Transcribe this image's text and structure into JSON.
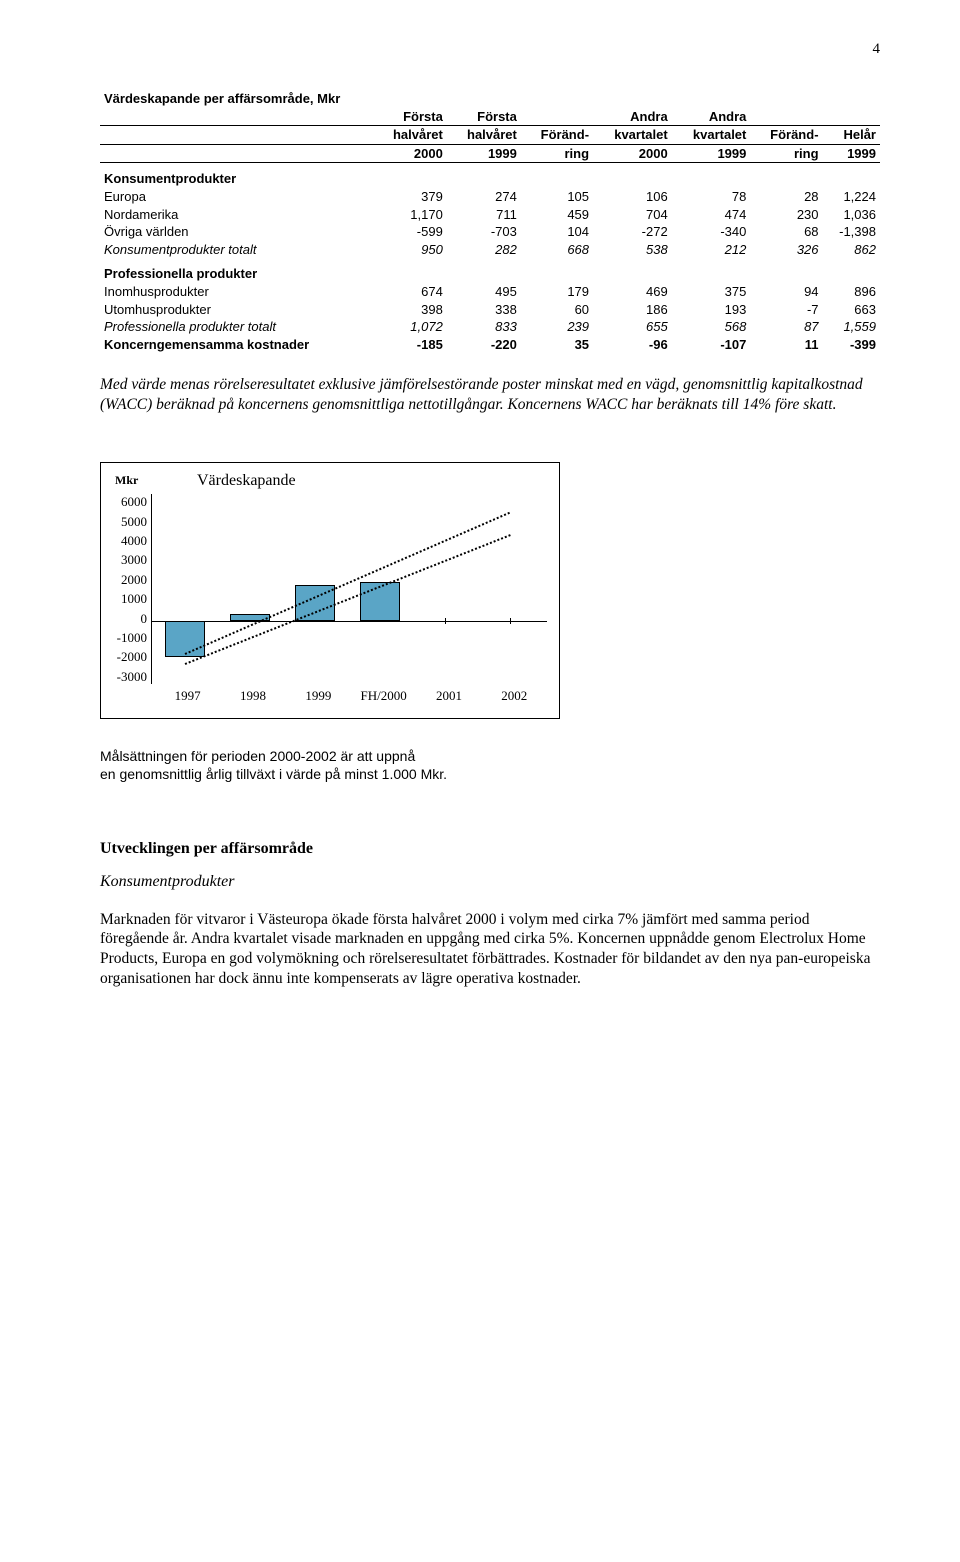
{
  "page_number": "4",
  "table": {
    "title": "Värdeskapande per affärsområde, Mkr",
    "columns": [
      {
        "line1": "",
        "line2": "",
        "line3": ""
      },
      {
        "line1": "Första",
        "line2": "halvåret",
        "line3": "2000"
      },
      {
        "line1": "Första",
        "line2": "halvåret",
        "line3": "1999"
      },
      {
        "line1": "",
        "line2": "Föränd-",
        "line3": "ring"
      },
      {
        "line1": "Andra",
        "line2": "kvartalet",
        "line3": "2000"
      },
      {
        "line1": "Andra",
        "line2": "kvartalet",
        "line3": "1999"
      },
      {
        "line1": "",
        "line2": "Föränd-",
        "line3": "ring"
      },
      {
        "line1": "",
        "line2": "Helår",
        "line3": "1999"
      }
    ],
    "section1": {
      "head": "Konsumentprodukter",
      "rows": [
        {
          "label": "Europa",
          "v": [
            "379",
            "274",
            "105",
            "106",
            "78",
            "28",
            "1,224"
          ]
        },
        {
          "label": "Nordamerika",
          "v": [
            "1,170",
            "711",
            "459",
            "704",
            "474",
            "230",
            "1,036"
          ]
        },
        {
          "label": "Övriga världen",
          "v": [
            "-599",
            "-703",
            "104",
            "-272",
            "-340",
            "68",
            "-1,398"
          ]
        }
      ],
      "total": {
        "label": "Konsumentprodukter totalt",
        "v": [
          "950",
          "282",
          "668",
          "538",
          "212",
          "326",
          "862"
        ]
      }
    },
    "section2": {
      "head": "Professionella produkter",
      "rows": [
        {
          "label": "Inomhusprodukter",
          "v": [
            "674",
            "495",
            "179",
            "469",
            "375",
            "94",
            "896"
          ]
        },
        {
          "label": "Utomhusprodukter",
          "v": [
            "398",
            "338",
            "60",
            "186",
            "193",
            "-7",
            "663"
          ]
        }
      ],
      "total": {
        "label": "Professionella produkter totalt",
        "v": [
          "1,072",
          "833",
          "239",
          "655",
          "568",
          "87",
          "1,559"
        ]
      }
    },
    "footer": {
      "label": "Koncerngemensamma kostnader",
      "v": [
        "-185",
        "-220",
        "35",
        "-96",
        "-107",
        "11",
        "-399"
      ]
    }
  },
  "paragraph1": "Med värde menas rörelseresultatet exklusive jämförelsestörande poster minskat med en vägd, genomsnittlig kapitalkostnad (WACC) beräknad på koncernens genomsnittliga nettotillgångar. Koncernens WACC har beräknats till 14% före skatt.",
  "chart": {
    "type": "bar",
    "title": "Värdeskapande",
    "y_label": "Mkr",
    "y_min": -3000,
    "y_max": 6000,
    "y_ticks": [
      "6000",
      "5000",
      "4000",
      "3000",
      "2000",
      "1000",
      "0",
      "-1000",
      "-2000",
      "-3000"
    ],
    "categories": [
      "1997",
      "1998",
      "1999",
      "FH/2000",
      "2001",
      "2002"
    ],
    "values": [
      -1700,
      350,
      1700,
      1850,
      null,
      null
    ],
    "bar_color": "#5aa5c6",
    "bar_border": "#000000",
    "background": "#ffffff",
    "trend_lower_start_y": -2000,
    "trend_lower_end_y": 4100,
    "trend_upper_start_y": -1500,
    "trend_upper_end_y": 5200
  },
  "caption_line1": "Målsättningen för perioden 2000-2002 är att uppnå",
  "caption_line2": "en genomsnittlig årlig tillväxt i värde på minst 1.000 Mkr.",
  "subheading": "Utvecklingen per affärsområde",
  "kp_head": "Konsumentprodukter",
  "paragraph2": "Marknaden för vitvaror i Västeuropa ökade första halvåret 2000 i volym med cirka 7% jämfört med samma period föregående år. Andra kvartalet visade marknaden en uppgång med cirka 5%. Koncernen uppnådde genom Electrolux Home Products, Europa en god volymökning och rörelseresultatet förbättrades. Kostnader för bildandet av den nya pan-europeiska organisationen har dock ännu inte kompenserats av lägre operativa kostnader."
}
